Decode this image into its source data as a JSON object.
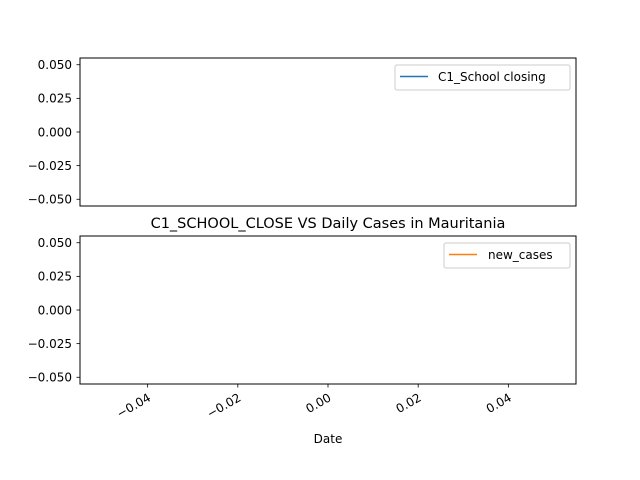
{
  "chart_data": [
    {
      "type": "line",
      "title": "",
      "xlabel": "",
      "ylabel": "",
      "ylim": [
        -0.055,
        0.055
      ],
      "yticks": [
        "0.050",
        "0.025",
        "0.000",
        "−0.025",
        "−0.050"
      ],
      "ytick_values": [
        0.05,
        0.025,
        0.0,
        -0.025,
        -0.05
      ],
      "legend_placement": "upper right",
      "grid": false,
      "series": [
        {
          "name": "C1_School closing",
          "color": "#1f77b4",
          "x": [],
          "y": []
        }
      ]
    },
    {
      "type": "line",
      "title": "C1_SCHOOL_CLOSE VS Daily Cases in Mauritania",
      "xlabel": "Date",
      "ylabel": "",
      "xlim": [
        -0.055,
        0.055
      ],
      "ylim": [
        -0.055,
        0.055
      ],
      "xticks": [
        "−0.04",
        "−0.02",
        "0.00",
        "0.02",
        "0.04"
      ],
      "xtick_values": [
        -0.04,
        -0.02,
        0.0,
        0.02,
        0.04
      ],
      "yticks": [
        "0.050",
        "0.025",
        "0.000",
        "−0.025",
        "−0.050"
      ],
      "ytick_values": [
        0.05,
        0.025,
        0.0,
        -0.025,
        -0.05
      ],
      "legend_placement": "upper right",
      "grid": false,
      "series": [
        {
          "name": "new_cases",
          "color": "#ff7f0e",
          "x": [],
          "y": []
        }
      ]
    }
  ]
}
